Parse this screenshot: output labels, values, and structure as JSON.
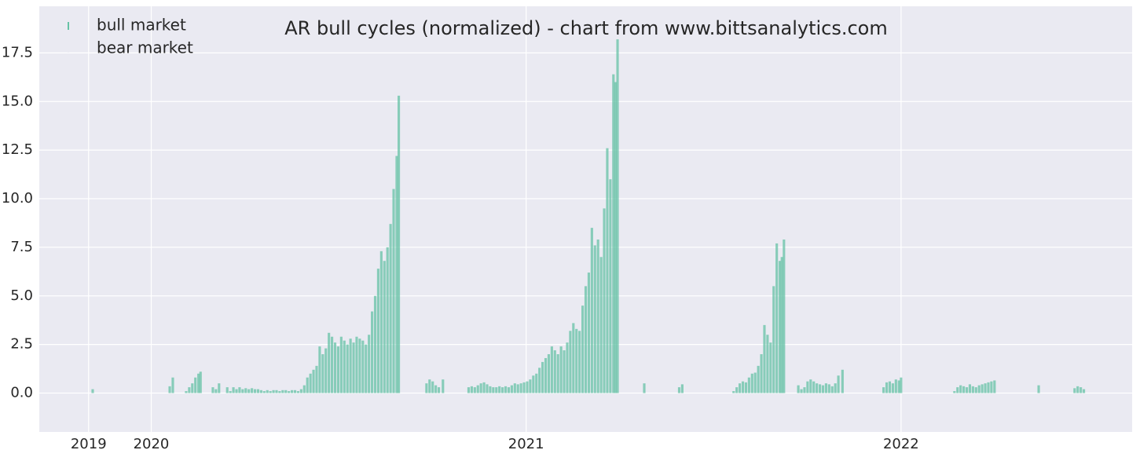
{
  "chart_data": {
    "type": "bar",
    "title": "AR bull cycles (normalized)  - chart from www.bittsanalytics.com",
    "series": [
      {
        "name": "bull market",
        "color": "#66c2a5",
        "x": [
          -57,
          18,
          21,
          34,
          37,
          40,
          43,
          46,
          48,
          60,
          63,
          66,
          74,
          77,
          80,
          83,
          86,
          89,
          92,
          95,
          98,
          101,
          104,
          107,
          110,
          113,
          116,
          119,
          122,
          125,
          128,
          131,
          134,
          137,
          140,
          143,
          146,
          149,
          152,
          155,
          158,
          161,
          164,
          167,
          170,
          173,
          176,
          179,
          182,
          185,
          188,
          191,
          194,
          197,
          200,
          203,
          206,
          209,
          212,
          215,
          218,
          221,
          224,
          227,
          230,
          233,
          236,
          239,
          241,
          268,
          271,
          274,
          277,
          280,
          284,
          309,
          312,
          315,
          318,
          321,
          324,
          327,
          330,
          333,
          336,
          339,
          342,
          345,
          348,
          351,
          354,
          357,
          360,
          363,
          366,
          369,
          372,
          375,
          378,
          381,
          384,
          387,
          390,
          393,
          396,
          399,
          402,
          405,
          408,
          411,
          414,
          417,
          420,
          423,
          426,
          429,
          432,
          435,
          438,
          441,
          444,
          447,
          450,
          452,
          454,
          480,
          514,
          517,
          567,
          570,
          573,
          576,
          579,
          582,
          585,
          588,
          591,
          594,
          597,
          600,
          603,
          606,
          609,
          612,
          614,
          616,
          630,
          633,
          636,
          639,
          642,
          645,
          648,
          651,
          654,
          657,
          660,
          663,
          666,
          669,
          673,
          713,
          716,
          719,
          722,
          725,
          728,
          730,
          782,
          785,
          788,
          791,
          794,
          797,
          800,
          803,
          806,
          809,
          812,
          815,
          818,
          821,
          864,
          899,
          902,
          905,
          908
        ],
        "values": [
          0.2,
          0.35,
          0.8,
          0.1,
          0.3,
          0.5,
          0.8,
          1.0,
          1.1,
          0.3,
          0.2,
          0.5,
          0.3,
          0.1,
          0.3,
          0.2,
          0.3,
          0.2,
          0.25,
          0.2,
          0.25,
          0.2,
          0.2,
          0.15,
          0.1,
          0.15,
          0.1,
          0.15,
          0.15,
          0.1,
          0.15,
          0.15,
          0.1,
          0.15,
          0.15,
          0.1,
          0.2,
          0.4,
          0.8,
          1.0,
          1.2,
          1.4,
          2.4,
          2.0,
          2.3,
          3.1,
          2.9,
          2.6,
          2.4,
          2.9,
          2.7,
          2.5,
          2.8,
          2.6,
          2.9,
          2.8,
          2.7,
          2.5,
          3.0,
          4.2,
          5.0,
          6.4,
          7.3,
          6.8,
          7.5,
          8.7,
          10.5,
          12.2,
          15.3,
          0.5,
          0.7,
          0.6,
          0.4,
          0.3,
          0.7,
          0.3,
          0.35,
          0.3,
          0.4,
          0.5,
          0.55,
          0.45,
          0.35,
          0.3,
          0.3,
          0.35,
          0.3,
          0.35,
          0.3,
          0.4,
          0.5,
          0.45,
          0.5,
          0.55,
          0.6,
          0.7,
          0.9,
          1.0,
          1.3,
          1.6,
          1.8,
          2.0,
          2.4,
          2.2,
          2.0,
          2.4,
          2.2,
          2.6,
          3.2,
          3.6,
          3.3,
          3.2,
          4.5,
          5.5,
          6.2,
          8.5,
          7.6,
          7.9,
          7.0,
          9.5,
          12.6,
          11.0,
          16.4,
          16.0,
          18.2,
          0.5,
          0.3,
          0.45,
          0.1,
          0.3,
          0.5,
          0.6,
          0.55,
          0.8,
          1.0,
          1.05,
          1.4,
          2.0,
          3.5,
          3.0,
          2.6,
          5.5,
          7.7,
          6.8,
          7.0,
          7.9,
          0.4,
          0.2,
          0.3,
          0.6,
          0.7,
          0.6,
          0.5,
          0.45,
          0.4,
          0.5,
          0.45,
          0.35,
          0.5,
          0.9,
          1.2,
          0.3,
          0.55,
          0.6,
          0.5,
          0.7,
          0.65,
          0.8,
          0.1,
          0.3,
          0.4,
          0.35,
          0.3,
          0.45,
          0.35,
          0.3,
          0.4,
          0.45,
          0.5,
          0.55,
          0.6,
          0.65,
          0.4,
          0.25,
          0.35,
          0.3,
          0.2
        ]
      },
      {
        "name": "bear market",
        "color": "#eaeaf2",
        "x": [],
        "values": []
      }
    ],
    "xlim": [
      -109,
      955
    ],
    "xticks": [
      {
        "value": -61,
        "label": "2019"
      },
      {
        "value": 0,
        "label": "2020"
      },
      {
        "value": 365,
        "label": "2021"
      },
      {
        "value": 730,
        "label": "2022"
      }
    ],
    "ylim": [
      -2,
      19.9
    ],
    "yticks": [
      {
        "value": 0,
        "label": "0.0"
      },
      2.5,
      {
        "value": 5,
        "label": "5.0"
      },
      7.5,
      {
        "value": 10,
        "label": "10.0"
      },
      12.5,
      {
        "value": 15,
        "label": "15.0"
      },
      17.5
    ],
    "grid": true,
    "legend": "upper left"
  }
}
